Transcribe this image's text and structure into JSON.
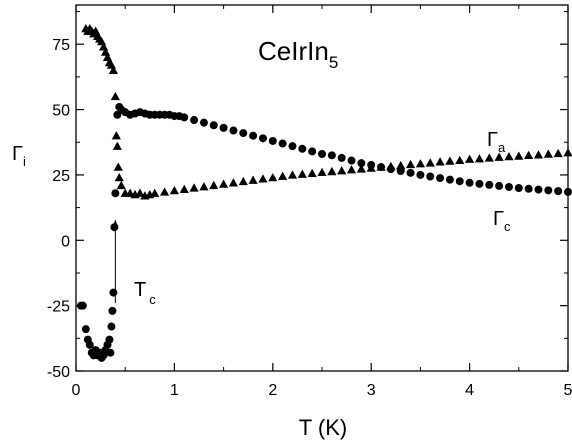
{
  "chart_data": {
    "type": "scatter",
    "compound": {
      "base": "CeIrIn",
      "sub": "5"
    },
    "xlabel": "T (K)",
    "ylabel": {
      "base": "Γ",
      "sub": "i"
    },
    "xlim": [
      0,
      5
    ],
    "ylim": [
      -50,
      90
    ],
    "x_ticks": [
      0,
      1,
      2,
      3,
      4,
      5
    ],
    "y_ticks": [
      -50,
      -25,
      0,
      25,
      50,
      75
    ],
    "grid": false,
    "annotations": {
      "tc": {
        "base": "T",
        "sub": "c",
        "arrow_x": 0.4,
        "arrow_from": -24,
        "arrow_to": 8
      }
    },
    "series": [
      {
        "label": {
          "base": "Γ",
          "sub": "a"
        },
        "marker": "triangle",
        "color": "#000000",
        "points": [
          [
            0.1,
            81
          ],
          [
            0.12,
            80
          ],
          [
            0.14,
            81
          ],
          [
            0.16,
            80
          ],
          [
            0.18,
            79
          ],
          [
            0.2,
            80
          ],
          [
            0.22,
            78
          ],
          [
            0.24,
            77
          ],
          [
            0.26,
            76
          ],
          [
            0.28,
            74
          ],
          [
            0.3,
            72
          ],
          [
            0.32,
            70
          ],
          [
            0.34,
            68
          ],
          [
            0.36,
            67
          ],
          [
            0.38,
            65
          ],
          [
            0.4,
            55
          ],
          [
            0.41,
            40
          ],
          [
            0.42,
            36
          ],
          [
            0.43,
            28
          ],
          [
            0.44,
            24
          ],
          [
            0.46,
            21
          ],
          [
            0.5,
            18
          ],
          [
            0.55,
            18
          ],
          [
            0.6,
            17.5
          ],
          [
            0.65,
            18
          ],
          [
            0.7,
            17
          ],
          [
            0.75,
            17.5
          ],
          [
            0.8,
            18
          ],
          [
            0.9,
            18.5
          ],
          [
            1.0,
            19
          ],
          [
            1.1,
            19.5
          ],
          [
            1.2,
            20
          ],
          [
            1.3,
            20.5
          ],
          [
            1.4,
            21
          ],
          [
            1.5,
            21.5
          ],
          [
            1.6,
            22
          ],
          [
            1.7,
            22.5
          ],
          [
            1.8,
            23
          ],
          [
            1.9,
            23.5
          ],
          [
            2.0,
            24
          ],
          [
            2.1,
            24.5
          ],
          [
            2.2,
            25
          ],
          [
            2.3,
            25.3
          ],
          [
            2.4,
            25.6
          ],
          [
            2.5,
            26
          ],
          [
            2.6,
            26.3
          ],
          [
            2.7,
            26.6
          ],
          [
            2.8,
            27
          ],
          [
            2.9,
            27.3
          ],
          [
            3.0,
            27.6
          ],
          [
            3.1,
            28
          ],
          [
            3.2,
            28.3
          ],
          [
            3.3,
            28.6
          ],
          [
            3.4,
            29
          ],
          [
            3.5,
            29.3
          ],
          [
            3.6,
            29.6
          ],
          [
            3.7,
            30
          ],
          [
            3.8,
            30.3
          ],
          [
            3.9,
            30.6
          ],
          [
            4.0,
            31
          ],
          [
            4.1,
            31.2
          ],
          [
            4.2,
            31.5
          ],
          [
            4.3,
            31.8
          ],
          [
            4.4,
            32
          ],
          [
            4.5,
            32.2
          ],
          [
            4.6,
            32.5
          ],
          [
            4.7,
            32.7
          ],
          [
            4.8,
            33
          ],
          [
            4.9,
            33.2
          ],
          [
            5.0,
            33.5
          ]
        ]
      },
      {
        "label": {
          "base": "Γ",
          "sub": "c"
        },
        "marker": "circle",
        "color": "#000000",
        "points": [
          [
            0.05,
            -25
          ],
          [
            0.07,
            -25
          ],
          [
            0.1,
            -34
          ],
          [
            0.12,
            -38
          ],
          [
            0.14,
            -40
          ],
          [
            0.16,
            -43
          ],
          [
            0.18,
            -44
          ],
          [
            0.2,
            -42
          ],
          [
            0.22,
            -44
          ],
          [
            0.24,
            -43
          ],
          [
            0.26,
            -45
          ],
          [
            0.28,
            -44
          ],
          [
            0.3,
            -42
          ],
          [
            0.32,
            -40
          ],
          [
            0.34,
            -38
          ],
          [
            0.35,
            -43
          ],
          [
            0.36,
            -33
          ],
          [
            0.37,
            -27
          ],
          [
            0.38,
            -20
          ],
          [
            0.39,
            5
          ],
          [
            0.4,
            18
          ],
          [
            0.42,
            48
          ],
          [
            0.44,
            51
          ],
          [
            0.46,
            50
          ],
          [
            0.5,
            49
          ],
          [
            0.55,
            48
          ],
          [
            0.6,
            48.5
          ],
          [
            0.65,
            49
          ],
          [
            0.7,
            48.5
          ],
          [
            0.75,
            48
          ],
          [
            0.8,
            48
          ],
          [
            0.85,
            48
          ],
          [
            0.9,
            48
          ],
          [
            0.95,
            48
          ],
          [
            1.0,
            47.5
          ],
          [
            1.05,
            47.5
          ],
          [
            1.1,
            47
          ],
          [
            1.2,
            46
          ],
          [
            1.3,
            45
          ],
          [
            1.4,
            44
          ],
          [
            1.5,
            43
          ],
          [
            1.6,
            42
          ],
          [
            1.7,
            41
          ],
          [
            1.8,
            40
          ],
          [
            1.9,
            39
          ],
          [
            2.0,
            38
          ],
          [
            2.1,
            37
          ],
          [
            2.2,
            36
          ],
          [
            2.3,
            35
          ],
          [
            2.4,
            34
          ],
          [
            2.5,
            33
          ],
          [
            2.6,
            32.5
          ],
          [
            2.7,
            31.5
          ],
          [
            2.8,
            30.5
          ],
          [
            2.9,
            29.5
          ],
          [
            3.0,
            28.8
          ],
          [
            3.1,
            28
          ],
          [
            3.2,
            27.2
          ],
          [
            3.3,
            26.5
          ],
          [
            3.4,
            25.8
          ],
          [
            3.5,
            25
          ],
          [
            3.6,
            24.4
          ],
          [
            3.7,
            23.8
          ],
          [
            3.8,
            23.2
          ],
          [
            3.9,
            22.6
          ],
          [
            4.0,
            22
          ],
          [
            4.1,
            21.6
          ],
          [
            4.2,
            21.2
          ],
          [
            4.3,
            20.8
          ],
          [
            4.4,
            20.4
          ],
          [
            4.5,
            20
          ],
          [
            4.6,
            19.7
          ],
          [
            4.7,
            19.4
          ],
          [
            4.8,
            19.1
          ],
          [
            4.9,
            18.8
          ],
          [
            5.0,
            18.5
          ]
        ]
      }
    ]
  }
}
